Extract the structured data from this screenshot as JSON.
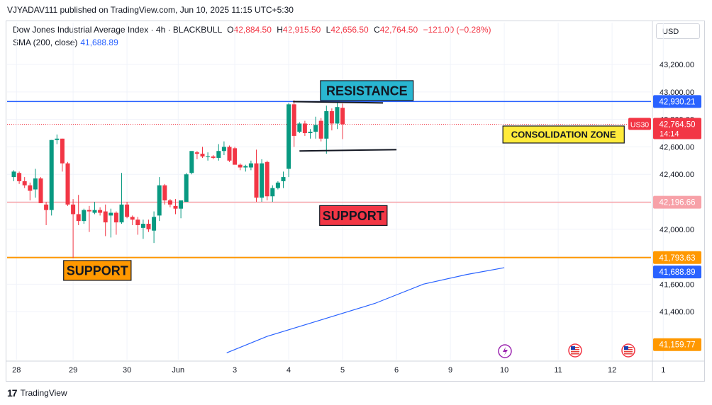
{
  "header": {
    "published": "VJYADAV111 published on TradingView.com, Jun 10, 2025 11:15 UTC+5:30",
    "symbol": "Dow Jones Industrial Average Index · 4h · BLACKBULL",
    "open_label": "O",
    "open": "42,884.50",
    "high_label": "H",
    "high": "42,915.50",
    "low_label": "L",
    "low": "42,656.50",
    "close_label": "C",
    "close": "42,764.50",
    "change": "−121.00 (−0.28%)",
    "sma_label": "SMA (200, close)",
    "sma_value": "41,688.89",
    "currency": "USD"
  },
  "footer": {
    "brand": "TradingView",
    "logo": "17"
  },
  "chart_data": {
    "type": "candlestick",
    "timeframe": "4h",
    "ylim": [
      41050,
      43350
    ],
    "y_ticks": [
      43200,
      43000,
      42800,
      42600,
      42400,
      42200,
      42000,
      41800,
      41600,
      41400
    ],
    "y_tick_labels": [
      "43,200.00",
      "43,000.00",
      "42,800.00",
      "42,600.00",
      "42,400.00",
      "42,200.00",
      "42,000.00",
      "41,800.00",
      "41,600.00",
      "41,400.00"
    ],
    "x_labels": [
      {
        "i": 0.5,
        "label": "28"
      },
      {
        "i": 11,
        "label": "29"
      },
      {
        "i": 21,
        "label": "30"
      },
      {
        "i": 30.5,
        "label": "Jun"
      },
      {
        "i": 41,
        "label": "3"
      },
      {
        "i": 51,
        "label": "4"
      },
      {
        "i": 61,
        "label": "5"
      },
      {
        "i": 71,
        "label": "6"
      },
      {
        "i": 81,
        "label": "9"
      },
      {
        "i": 91,
        "label": "10"
      },
      {
        "i": 101,
        "label": "11"
      },
      {
        "i": 111,
        "label": "12"
      },
      {
        "i": 120.5,
        "label": "1"
      }
    ],
    "candles": [
      [
        42380,
        42430,
        42350,
        42420
      ],
      [
        42410,
        42420,
        42330,
        42350
      ],
      [
        42350,
        42380,
        42300,
        42320
      ],
      [
        42320,
        42340,
        42210,
        42280
      ],
      [
        42290,
        42440,
        42230,
        42370
      ],
      [
        42370,
        42380,
        42190,
        42190
      ],
      [
        42180,
        42200,
        42030,
        42140
      ],
      [
        42140,
        42650,
        42100,
        42650
      ],
      [
        42650,
        42690,
        42620,
        42660
      ],
      [
        42660,
        42660,
        42420,
        42480
      ],
      [
        42480,
        42490,
        42170,
        42180
      ],
      [
        42180,
        42220,
        41790,
        42110
      ],
      [
        42110,
        42250,
        42030,
        42060
      ],
      [
        42060,
        42150,
        42040,
        42140
      ],
      [
        42140,
        42170,
        41980,
        42130
      ],
      [
        42120,
        42200,
        42110,
        42140
      ],
      [
        42140,
        42160,
        42100,
        42120
      ],
      [
        42130,
        42180,
        41950,
        42050
      ],
      [
        42100,
        42150,
        41940,
        42120
      ],
      [
        42120,
        42130,
        41960,
        42050
      ],
      [
        42050,
        42410,
        42040,
        42180
      ],
      [
        42180,
        42200,
        42080,
        42090
      ],
      [
        42090,
        42100,
        42030,
        42070
      ],
      [
        42070,
        42090,
        41960,
        42030
      ],
      [
        42010,
        42070,
        41930,
        42040
      ],
      [
        42040,
        42070,
        41980,
        42000
      ],
      [
        41990,
        42130,
        41900,
        42090
      ],
      [
        42100,
        42380,
        42060,
        42320
      ],
      [
        42320,
        42330,
        42180,
        42210
      ],
      [
        42210,
        42220,
        42160,
        42180
      ],
      [
        42170,
        42220,
        42110,
        42150
      ],
      [
        42150,
        42190,
        42080,
        42210
      ],
      [
        42200,
        42410,
        42200,
        42400
      ],
      [
        42410,
        42560,
        42400,
        42570
      ],
      [
        42560,
        42570,
        42510,
        42550
      ],
      [
        42550,
        42600,
        42520,
        42530
      ],
      [
        42530,
        42560,
        42500,
        42530
      ],
      [
        42530,
        42540,
        42510,
        42520
      ],
      [
        42520,
        42620,
        42500,
        42570
      ],
      [
        42570,
        42640,
        42540,
        42600
      ],
      [
        42600,
        42610,
        42490,
        42500
      ],
      [
        42590,
        42600,
        42490,
        42470
      ],
      [
        42470,
        42480,
        42430,
        42450
      ],
      [
        42450,
        42470,
        42420,
        42460
      ],
      [
        42450,
        42500,
        42430,
        42480
      ],
      [
        42480,
        42580,
        42200,
        42230
      ],
      [
        42230,
        42510,
        42200,
        42480
      ],
      [
        42490,
        42500,
        42210,
        42240
      ],
      [
        42240,
        42320,
        42200,
        42300
      ],
      [
        42300,
        42350,
        42290,
        42340
      ],
      [
        42350,
        42420,
        42300,
        42380
      ],
      [
        42440,
        42920,
        42380,
        42910
      ],
      [
        42910,
        42940,
        42600,
        42680
      ],
      [
        42710,
        42780,
        42700,
        42770
      ],
      [
        42770,
        42790,
        42680,
        42700
      ],
      [
        42700,
        42730,
        42660,
        42710
      ],
      [
        42710,
        42820,
        42660,
        42760
      ],
      [
        42790,
        42810,
        42640,
        42660
      ],
      [
        42660,
        42900,
        42550,
        42860
      ],
      [
        42860,
        42880,
        42720,
        42770
      ],
      [
        42770,
        42930,
        42730,
        42890
      ],
      [
        42884.5,
        42915.5,
        42656.5,
        42764.5
      ]
    ],
    "sma": {
      "name": "SMA (200, close)",
      "points": [
        [
          39.5,
          41100
        ],
        [
          47,
          41220
        ],
        [
          57,
          41340
        ],
        [
          67,
          41460
        ],
        [
          76,
          41600
        ],
        [
          84,
          41670
        ],
        [
          91,
          41720
        ]
      ]
    },
    "horizontal_lines": [
      {
        "value": 42930.21,
        "label": "42,930.21",
        "color": "#2962ff"
      },
      {
        "value": 42196.66,
        "label": "42,196.66",
        "color": "#f7a1a8"
      },
      {
        "value": 41793.63,
        "label": "41,793.63",
        "color": "#ff9800"
      }
    ],
    "price_tags": [
      {
        "value": 41688.89,
        "label": "41,688.89",
        "color": "#2962ff"
      },
      {
        "value": 41159.77,
        "label": "41,159.77",
        "color": "#ff9800"
      }
    ],
    "last_price": {
      "value": 42764.5,
      "label": "42,764.50",
      "countdown": "14:14",
      "symbol": "US30",
      "color": "#f23645"
    },
    "annotations": [
      {
        "text": "RESISTANCE",
        "bg": "#29b6d1",
        "i": 65.5,
        "y": 43010
      },
      {
        "text": "CONSOLIDATION ZONE",
        "bg": "#ffeb3b",
        "i": 102,
        "y": 42690
      },
      {
        "text": "SUPPORT",
        "bg": "#f23645",
        "i": 63,
        "y": 42100
      },
      {
        "text": "SUPPORT",
        "bg": "#ff9800",
        "i": 15.5,
        "y": 41700
      }
    ],
    "trendlines": [
      {
        "from": [
          51.8,
          42930
        ],
        "to": [
          68.5,
          42920
        ]
      },
      {
        "from": [
          53,
          42570
        ],
        "to": [
          71,
          42580
        ]
      }
    ]
  }
}
